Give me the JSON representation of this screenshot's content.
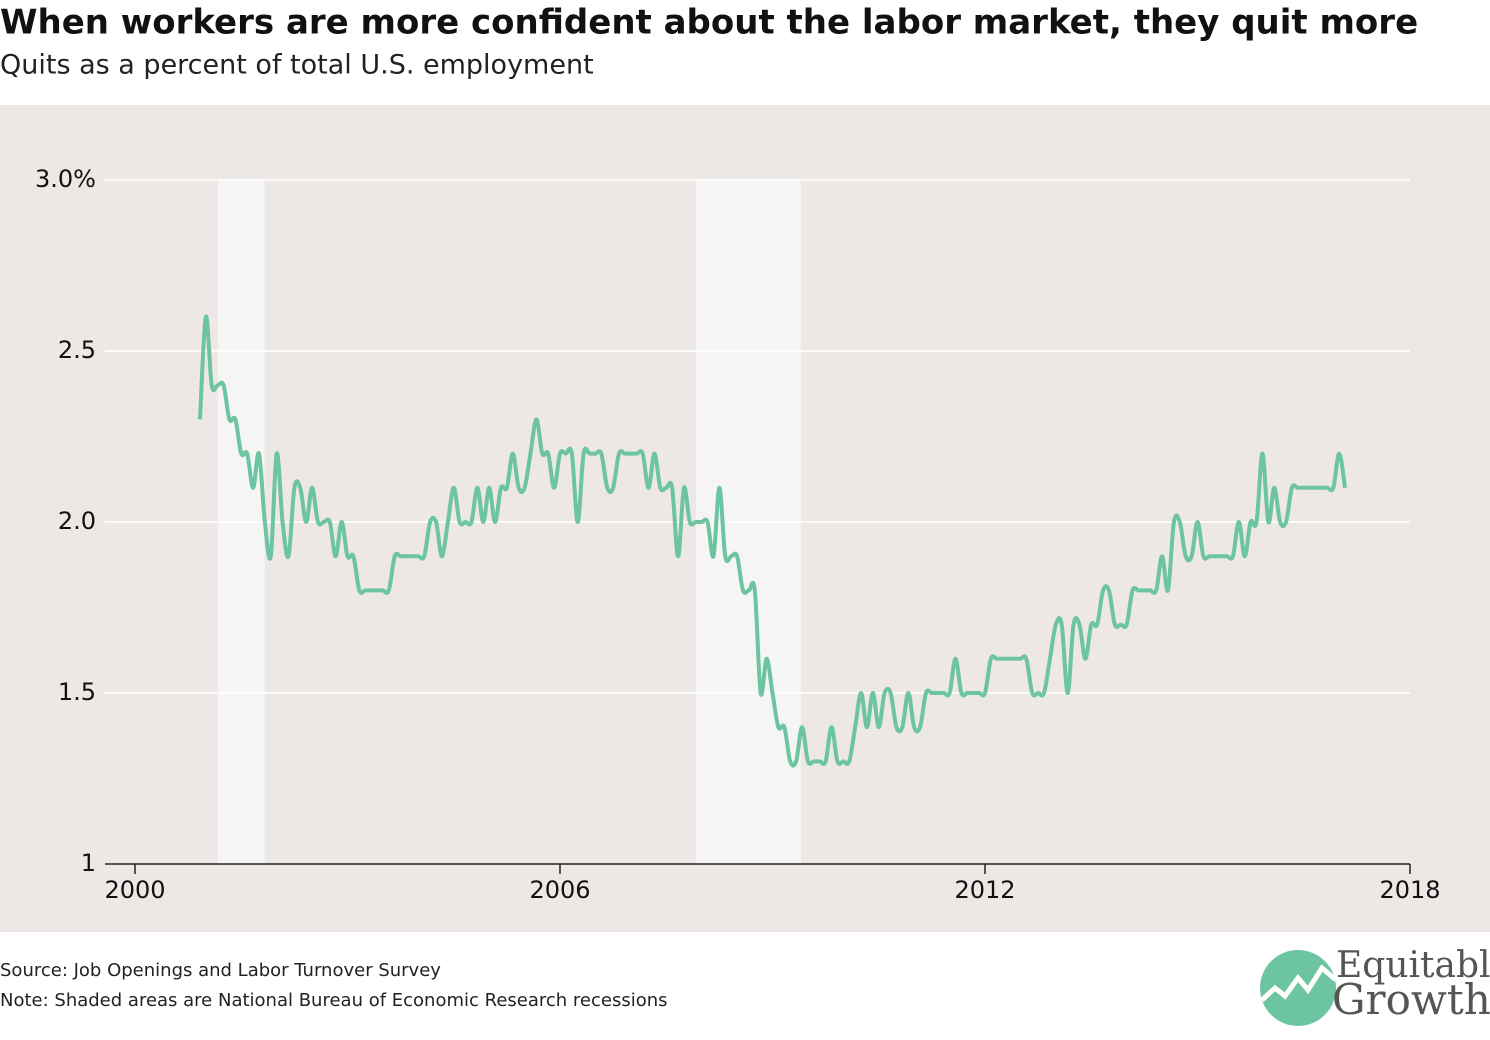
{
  "chart_data": {
    "type": "line",
    "title": "When workers are more confident about the labor market, they quit more",
    "subtitle": "Quits as a percent of total U.S. employment",
    "source": "Source: Job Openings and Labor Turnover Survey",
    "note": "Note: Shaded areas are National Bureau of Economic Research recessions",
    "xlim": [
      2000,
      2018
    ],
    "xticks": [
      2000,
      2006,
      2012,
      2018
    ],
    "ylim": [
      1,
      3
    ],
    "yticks": [
      {
        "value": 3,
        "label": "3.0%"
      },
      2.5,
      {
        "value": 2,
        "label": "2.0"
      },
      1.5,
      1
    ],
    "grid": true,
    "shaded_ranges": [
      [
        2001.17,
        2001.83
      ],
      [
        2007.92,
        2009.4
      ]
    ],
    "shade_color": "#f6f5f5",
    "x": [
      2000.917,
      2001,
      2001.083,
      2001.167,
      2001.25,
      2001.333,
      2001.417,
      2001.5,
      2001.583,
      2001.667,
      2001.75,
      2001.833,
      2001.917,
      2002,
      2002.083,
      2002.167,
      2002.25,
      2002.333,
      2002.417,
      2002.5,
      2002.583,
      2002.667,
      2002.75,
      2002.833,
      2002.917,
      2003,
      2003.083,
      2003.167,
      2003.25,
      2003.333,
      2003.417,
      2003.5,
      2003.583,
      2003.667,
      2003.75,
      2003.833,
      2003.917,
      2004,
      2004.083,
      2004.167,
      2004.25,
      2004.333,
      2004.417,
      2004.5,
      2004.583,
      2004.667,
      2004.75,
      2004.833,
      2004.917,
      2005,
      2005.083,
      2005.167,
      2005.25,
      2005.333,
      2005.417,
      2005.5,
      2005.583,
      2005.667,
      2005.75,
      2005.833,
      2005.917,
      2006,
      2006.083,
      2006.167,
      2006.25,
      2006.333,
      2006.417,
      2006.5,
      2006.583,
      2006.667,
      2006.75,
      2006.833,
      2006.917,
      2007,
      2007.083,
      2007.167,
      2007.25,
      2007.333,
      2007.417,
      2007.5,
      2007.583,
      2007.667,
      2007.75,
      2007.833,
      2007.917,
      2008,
      2008.083,
      2008.167,
      2008.25,
      2008.333,
      2008.417,
      2008.5,
      2008.583,
      2008.667,
      2008.75,
      2008.833,
      2008.917,
      2009,
      2009.083,
      2009.167,
      2009.25,
      2009.333,
      2009.417,
      2009.5,
      2009.583,
      2009.667,
      2009.75,
      2009.833,
      2009.917,
      2010,
      2010.083,
      2010.167,
      2010.25,
      2010.333,
      2010.417,
      2010.5,
      2010.583,
      2010.667,
      2010.75,
      2010.833,
      2010.917,
      2011,
      2011.083,
      2011.167,
      2011.25,
      2011.333,
      2011.417,
      2011.5,
      2011.583,
      2011.667,
      2011.75,
      2011.833,
      2011.917,
      2012,
      2012.083,
      2012.167,
      2012.25,
      2012.333,
      2012.417,
      2012.5,
      2012.583,
      2012.667,
      2012.75,
      2012.833,
      2012.917,
      2013,
      2013.083,
      2013.167,
      2013.25,
      2013.333,
      2013.417,
      2013.5,
      2013.583,
      2013.667,
      2013.75,
      2013.833,
      2013.917,
      2014,
      2014.083,
      2014.167,
      2014.25,
      2014.333,
      2014.417,
      2014.5,
      2014.583,
      2014.667,
      2014.75,
      2014.833,
      2014.917,
      2015,
      2015.083,
      2015.167,
      2015.25,
      2015.333,
      2015.417,
      2015.5,
      2015.583,
      2015.667,
      2015.75,
      2015.833,
      2015.917,
      2016,
      2016.083,
      2016.167,
      2016.25,
      2016.333,
      2016.417,
      2016.5,
      2016.583,
      2016.667,
      2016.75,
      2016.833,
      2016.917,
      2017,
      2017.083
    ],
    "series": [
      {
        "name": "Quits",
        "color": "#6cc4a0",
        "values": [
          2.3,
          2.6,
          2.4,
          2.4,
          2.4,
          2.3,
          2.3,
          2.2,
          2.2,
          2.1,
          2.2,
          2.0,
          1.9,
          2.2,
          2.0,
          1.9,
          2.1,
          2.1,
          2.0,
          2.1,
          2.0,
          2.0,
          2.0,
          1.9,
          2.0,
          1.9,
          1.9,
          1.8,
          1.8,
          1.8,
          1.8,
          1.8,
          1.8,
          1.9,
          1.9,
          1.9,
          1.9,
          1.9,
          1.9,
          2.0,
          2.0,
          1.9,
          2.0,
          2.1,
          2.0,
          2.0,
          2.0,
          2.1,
          2.0,
          2.1,
          2.0,
          2.1,
          2.1,
          2.2,
          2.1,
          2.1,
          2.2,
          2.3,
          2.2,
          2.2,
          2.1,
          2.2,
          2.2,
          2.2,
          2.0,
          2.2,
          2.2,
          2.2,
          2.2,
          2.1,
          2.1,
          2.2,
          2.2,
          2.2,
          2.2,
          2.2,
          2.1,
          2.2,
          2.1,
          2.1,
          2.1,
          1.9,
          2.1,
          2.0,
          2.0,
          2.0,
          2.0,
          1.9,
          2.1,
          1.9,
          1.9,
          1.9,
          1.8,
          1.8,
          1.8,
          1.5,
          1.6,
          1.5,
          1.4,
          1.4,
          1.3,
          1.3,
          1.4,
          1.3,
          1.3,
          1.3,
          1.3,
          1.4,
          1.3,
          1.3,
          1.3,
          1.4,
          1.5,
          1.4,
          1.5,
          1.4,
          1.5,
          1.5,
          1.4,
          1.4,
          1.5,
          1.4,
          1.4,
          1.5,
          1.5,
          1.5,
          1.5,
          1.5,
          1.6,
          1.5,
          1.5,
          1.5,
          1.5,
          1.5,
          1.6,
          1.6,
          1.6,
          1.6,
          1.6,
          1.6,
          1.6,
          1.5,
          1.5,
          1.5,
          1.6,
          1.7,
          1.7,
          1.5,
          1.7,
          1.7,
          1.6,
          1.7,
          1.7,
          1.8,
          1.8,
          1.7,
          1.7,
          1.7,
          1.8,
          1.8,
          1.8,
          1.8,
          1.8,
          1.9,
          1.8,
          2.0,
          2.0,
          1.9,
          1.9,
          2.0,
          1.9,
          1.9,
          1.9,
          1.9,
          1.9,
          1.9,
          2.0,
          1.9,
          2.0,
          2.0,
          2.2,
          2.0,
          2.1,
          2.0,
          2.0,
          2.1,
          2.1,
          2.1,
          2.1,
          2.1,
          2.1,
          2.1,
          2.1,
          2.2,
          2.1
        ]
      }
    ]
  },
  "logo": {
    "line1": "Equitable",
    "line2": "Growth"
  }
}
